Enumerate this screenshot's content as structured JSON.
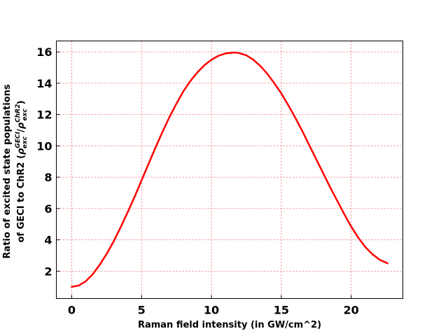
{
  "chart_data": {
    "type": "line",
    "title": "",
    "xlabel": "Raman field intensity (in GW/cm^2)",
    "ylabel_line1": "Ratio of excited state populations",
    "ylabel_line2_prefix": "of GECI to ChR2 (",
    "ylabel_rho": "ρ",
    "ylabel_sub": "exc",
    "ylabel_sup_num": "GECI",
    "ylabel_sup_den": "ChR2",
    "ylabel_slash": "/",
    "ylabel_close": ")",
    "xlim": [
      -1.1,
      23.7
    ],
    "ylim": [
      0.25,
      16.7
    ],
    "xticks": [
      0,
      5,
      10,
      15,
      20
    ],
    "xtick_labels": [
      "0",
      "5",
      "10",
      "15",
      "20"
    ],
    "yticks": [
      2,
      4,
      6,
      8,
      10,
      12,
      14,
      16
    ],
    "ytick_labels": [
      "2",
      "4",
      "6",
      "8",
      "10",
      "12",
      "14",
      "16"
    ],
    "grid": true,
    "grid_color": "#f08080",
    "series": [
      {
        "color": "#ff0000",
        "x": [
          0,
          0.5,
          1,
          1.5,
          2,
          2.5,
          3,
          3.5,
          4,
          4.5,
          5,
          5.5,
          6,
          6.5,
          7,
          7.5,
          8,
          8.5,
          9,
          9.5,
          10,
          10.5,
          11,
          11.5,
          11.7,
          12,
          12.5,
          13,
          13.5,
          14,
          14.5,
          15,
          15.5,
          16,
          16.5,
          17,
          17.5,
          18,
          18.5,
          19,
          19.5,
          20,
          20.5,
          21,
          21.5,
          22,
          22.6
        ],
        "y": [
          1.0,
          1.08,
          1.35,
          1.8,
          2.4,
          3.1,
          3.9,
          4.8,
          5.75,
          6.75,
          7.8,
          8.85,
          9.9,
          10.9,
          11.85,
          12.7,
          13.5,
          14.15,
          14.7,
          15.15,
          15.5,
          15.75,
          15.9,
          15.95,
          15.96,
          15.92,
          15.78,
          15.5,
          15.1,
          14.6,
          14.0,
          13.35,
          12.6,
          11.8,
          10.95,
          10.05,
          9.15,
          8.25,
          7.35,
          6.5,
          5.65,
          4.85,
          4.15,
          3.55,
          3.1,
          2.75,
          2.5
        ]
      }
    ]
  }
}
